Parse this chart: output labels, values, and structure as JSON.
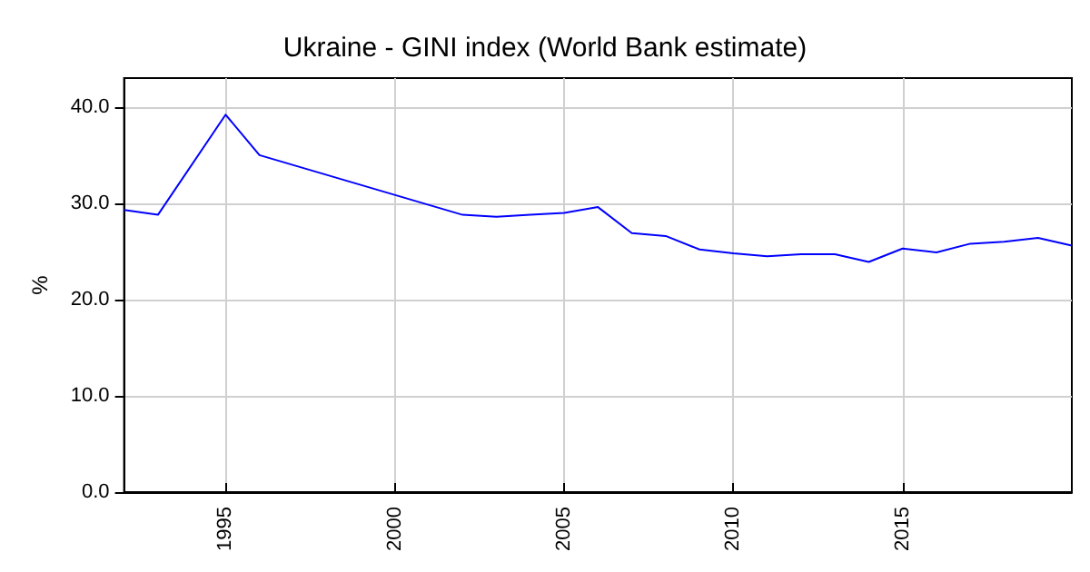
{
  "chart_data": {
    "type": "line",
    "title": "Ukraine - GINI index (World Bank estimate)",
    "ylabel": "%",
    "x": [
      1992,
      1993,
      1995,
      1996,
      2002,
      2003,
      2004,
      2005,
      2006,
      2007,
      2008,
      2009,
      2010,
      2011,
      2012,
      2013,
      2014,
      2015,
      2016,
      2017,
      2018,
      2019,
      2020
    ],
    "series": [
      {
        "color": "#0000ff",
        "values": [
          29.3,
          28.8,
          39.2,
          35.0,
          28.8,
          28.6,
          28.8,
          29.0,
          29.6,
          26.9,
          26.6,
          25.2,
          24.8,
          24.5,
          24.7,
          24.7,
          23.9,
          25.3,
          24.9,
          25.8,
          26.0,
          26.4,
          25.6
        ]
      }
    ],
    "xlim": [
      1992,
      2020
    ],
    "xticks": [
      1995,
      2000,
      2005,
      2010,
      2015
    ],
    "ylim": [
      0,
      43
    ],
    "yticks": [
      {
        "value": 0,
        "label": "0.0"
      },
      {
        "value": 10,
        "label": "10.0"
      },
      {
        "value": 20,
        "label": "20.0"
      },
      {
        "value": 30,
        "label": "30.0"
      },
      {
        "value": 40,
        "label": "40.0"
      }
    ],
    "grid": true,
    "marker": "none",
    "line_style": "solid"
  }
}
